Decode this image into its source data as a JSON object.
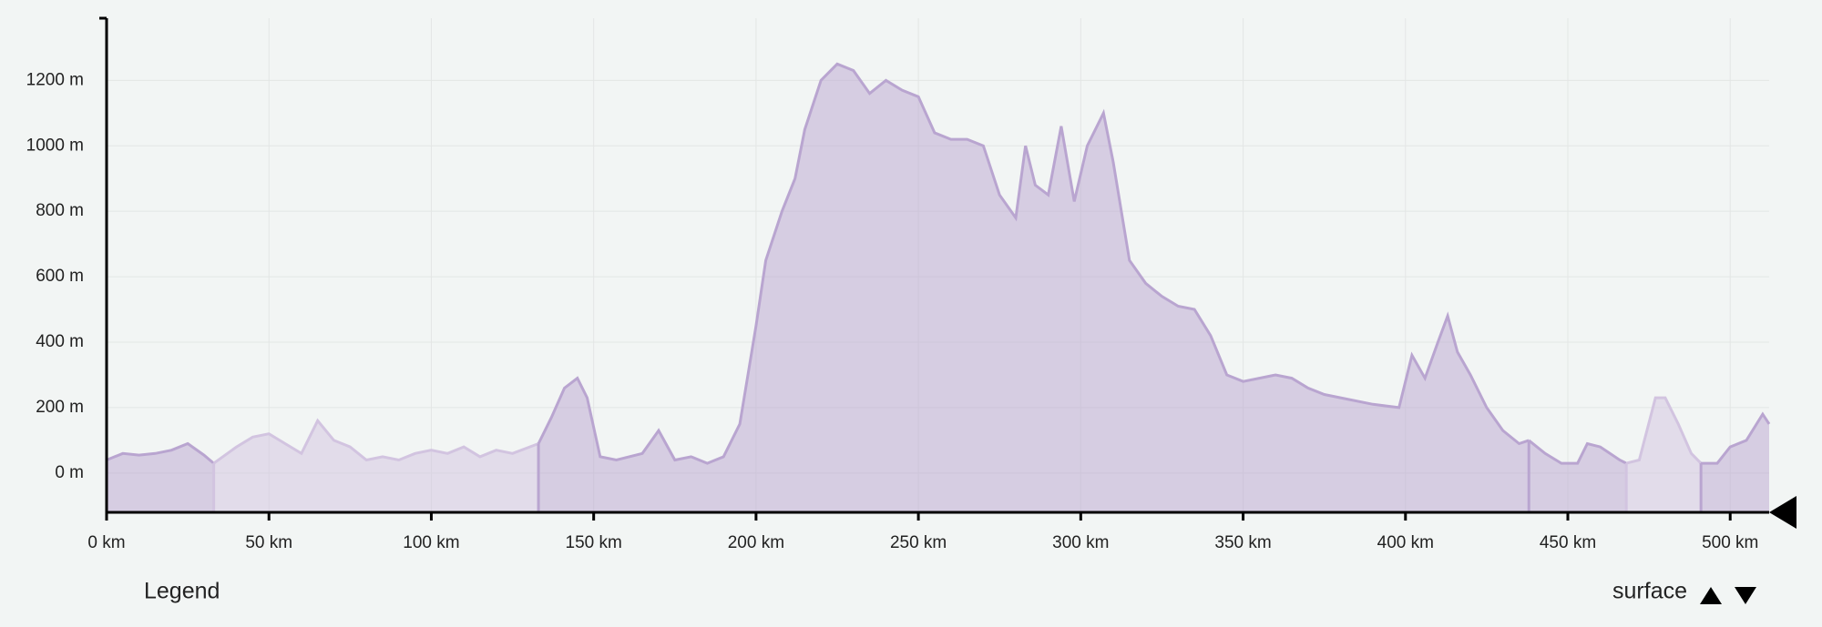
{
  "chart_data": {
    "type": "area",
    "xlim": [
      0,
      512
    ],
    "ylim": [
      -120,
      1390
    ],
    "xticks": [
      {
        "value": 0,
        "label": "0 km"
      },
      {
        "value": 50,
        "label": "50 km"
      },
      {
        "value": 100,
        "label": "100 km"
      },
      {
        "value": 150,
        "label": "150 km"
      },
      {
        "value": 200,
        "label": "200 km"
      },
      {
        "value": 250,
        "label": "250 km"
      },
      {
        "value": 300,
        "label": "300 km"
      },
      {
        "value": 350,
        "label": "350 km"
      },
      {
        "value": 400,
        "label": "400 km"
      },
      {
        "value": 450,
        "label": "450 km"
      },
      {
        "value": 500,
        "label": "500 km"
      }
    ],
    "yticks": [
      {
        "value": 0,
        "label": "0 m"
      },
      {
        "value": 200,
        "label": "200 m"
      },
      {
        "value": 400,
        "label": "400 m"
      },
      {
        "value": 600,
        "label": "600 m"
      },
      {
        "value": 800,
        "label": "800 m"
      },
      {
        "value": 1000,
        "label": "1000 m"
      },
      {
        "value": 1200,
        "label": "1200 m"
      }
    ],
    "grid": true,
    "series": [
      {
        "color": "#b9a5d0",
        "x": [
          0,
          5,
          10,
          15,
          20,
          25,
          30,
          33
        ],
        "values": [
          40,
          60,
          55,
          60,
          70,
          90,
          55,
          30
        ]
      },
      {
        "color": "#d2c4e0",
        "x": [
          33,
          40,
          45,
          50,
          55,
          60,
          65,
          70,
          75,
          80,
          85,
          90,
          95,
          100,
          105,
          110,
          115,
          120,
          125,
          133
        ],
        "values": [
          30,
          80,
          110,
          120,
          90,
          60,
          160,
          100,
          80,
          40,
          50,
          40,
          60,
          70,
          60,
          80,
          50,
          70,
          60,
          90
        ]
      },
      {
        "color": "#b9a5d0",
        "x": [
          133,
          137,
          141,
          145,
          148,
          152,
          157,
          165,
          170,
          175,
          180,
          185,
          190,
          195,
          200,
          203,
          208,
          212,
          215,
          220,
          225,
          230,
          235,
          240,
          245,
          250,
          255,
          260,
          265,
          270,
          275,
          280,
          283,
          286,
          290,
          294,
          298,
          302,
          307,
          310,
          315,
          320,
          325,
          330,
          335,
          340,
          345,
          350,
          360,
          365,
          370,
          375,
          380,
          390,
          398,
          402,
          406,
          410,
          413,
          416,
          420,
          425,
          430,
          435,
          438
        ],
        "values": [
          90,
          170,
          260,
          290,
          230,
          50,
          40,
          60,
          130,
          40,
          50,
          30,
          50,
          150,
          450,
          650,
          800,
          900,
          1050,
          1200,
          1250,
          1230,
          1160,
          1200,
          1170,
          1150,
          1040,
          1020,
          1020,
          1000,
          850,
          780,
          1000,
          880,
          850,
          1060,
          830,
          1000,
          1100,
          950,
          650,
          580,
          540,
          510,
          500,
          420,
          300,
          280,
          300,
          290,
          260,
          240,
          230,
          210,
          200,
          360,
          290,
          400,
          480,
          370,
          300,
          200,
          130,
          90,
          100
        ]
      },
      {
        "color": "#b9a5d0",
        "x": [
          438,
          443,
          448,
          453,
          456,
          460,
          466,
          468
        ],
        "values": [
          100,
          60,
          30,
          30,
          90,
          80,
          40,
          30
        ]
      },
      {
        "color": "#d2c4e0",
        "x": [
          468,
          472,
          477,
          480,
          484,
          488,
          491
        ],
        "values": [
          30,
          40,
          230,
          230,
          150,
          60,
          30
        ]
      },
      {
        "color": "#b9a5d0",
        "x": [
          491,
          496,
          500,
          505,
          510,
          512
        ],
        "values": [
          30,
          30,
          80,
          100,
          180,
          150
        ]
      }
    ]
  },
  "legend_label": "Legend",
  "sort_label": "surface"
}
